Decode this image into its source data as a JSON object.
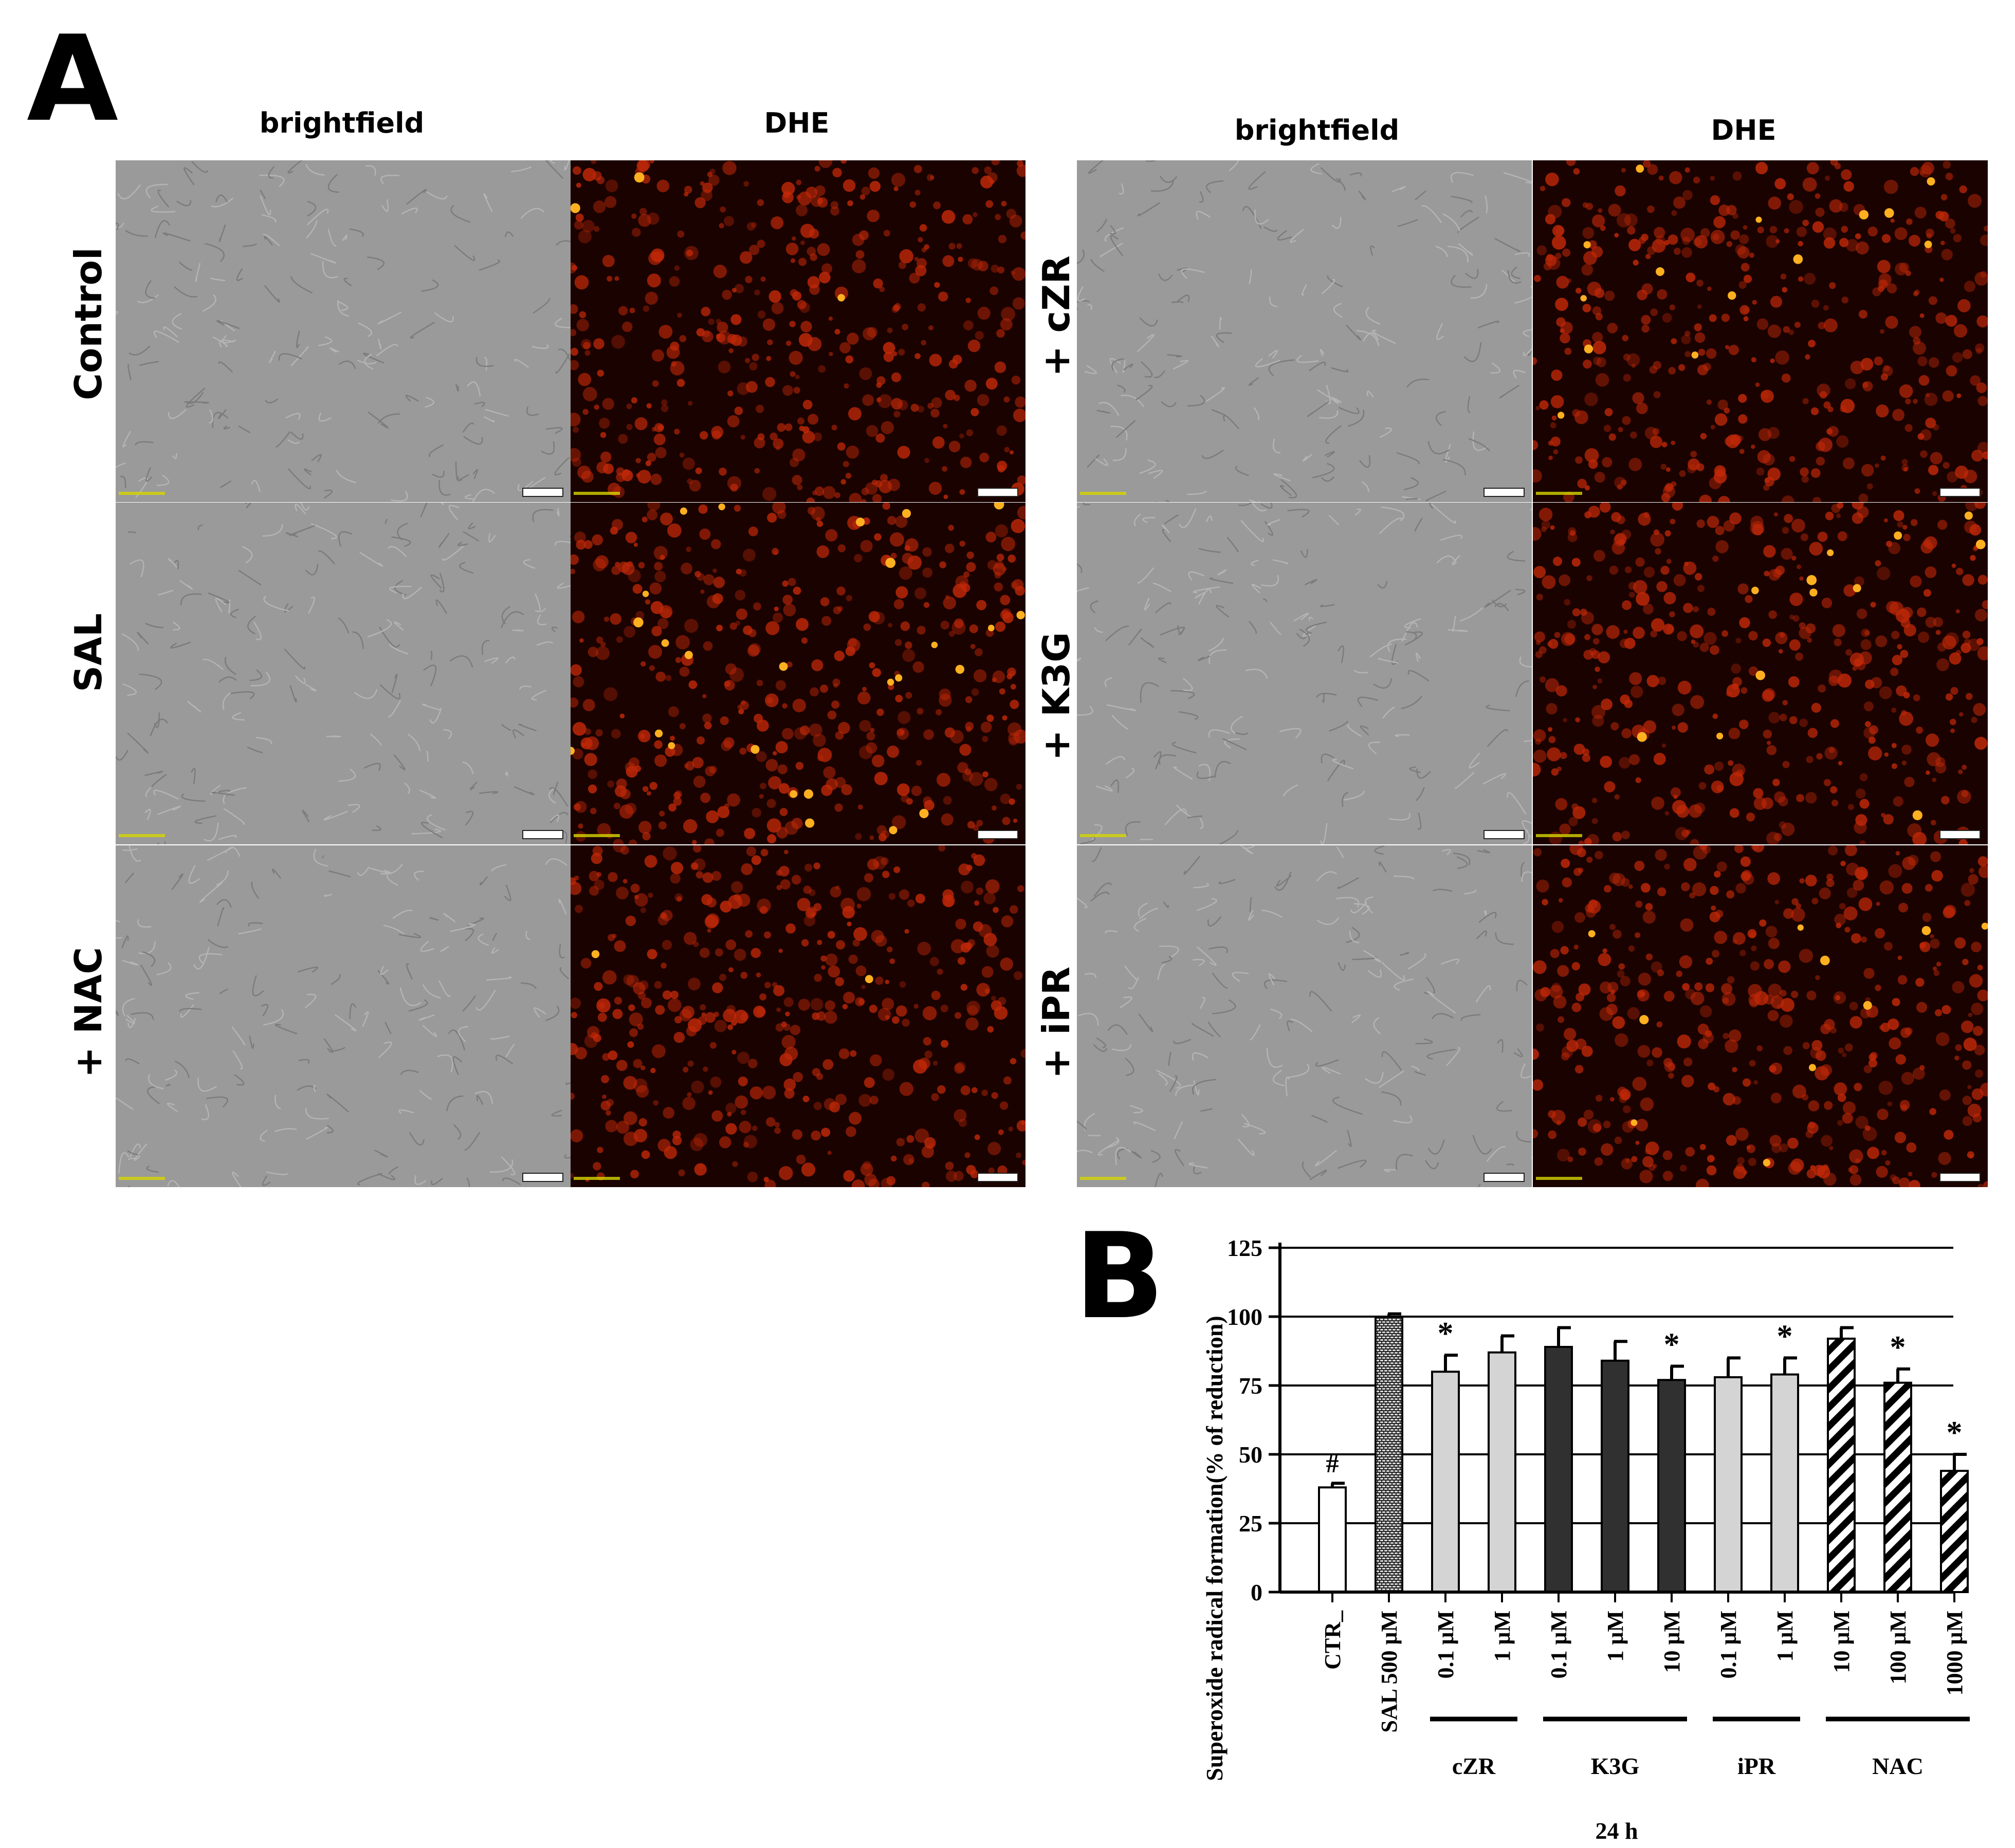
{
  "panel_a": {
    "letter": "A",
    "left_group": {
      "brightfield": "brightfield",
      "dhe": "DHE"
    },
    "right_group": {
      "brightfield": "brightfield",
      "dhe": "DHE"
    },
    "rows_left": [
      "Control",
      "SAL",
      "+ NAC"
    ],
    "rows_right": [
      "+ cZR",
      "+ K3G",
      "+ iPR"
    ],
    "colors": {
      "brightfield": "#9a9a9a",
      "dhe_bg": "#1a0200",
      "dhe_signal": "#c02808",
      "dhe_spot": "#ffb020"
    }
  },
  "panel_b": {
    "letter": "B"
  },
  "chart_data": {
    "type": "bar",
    "ylabel": "Superoxide radical formation(% of reduction)",
    "xlabel": "24 h",
    "ylim": [
      0,
      125
    ],
    "yticks": [
      0,
      25,
      50,
      75,
      100,
      125
    ],
    "grid": true,
    "categories": [
      "CTR_",
      "SAL 500 μM",
      "0.1 μM",
      "1 μM",
      "0.1 μM",
      "1 μM",
      "10 μM",
      "0.1 μM",
      "1 μM",
      "10 μM",
      "100 μM",
      "1000 μM"
    ],
    "values": [
      38,
      100,
      80,
      87,
      89,
      84,
      77,
      78,
      79,
      92,
      76,
      44
    ],
    "errors": [
      1.5,
      1,
      6,
      6,
      7,
      7,
      5,
      7,
      6,
      4,
      5,
      6
    ],
    "annotations": [
      "#",
      "",
      "*",
      "",
      "",
      "",
      "*",
      "",
      "*",
      "",
      "*",
      "*"
    ],
    "fills": [
      "white",
      "brick",
      "light",
      "light",
      "dark",
      "dark",
      "dark",
      "light",
      "light",
      "hatch",
      "hatch",
      "hatch"
    ],
    "groups": [
      {
        "label": "cZR",
        "from": 2,
        "to": 3
      },
      {
        "label": "K3G",
        "from": 4,
        "to": 6
      },
      {
        "label": "iPR",
        "from": 7,
        "to": 8
      },
      {
        "label": "NAC",
        "from": 9,
        "to": 11
      }
    ],
    "colors": {
      "light": "#d4d4d4",
      "dark": "#303030",
      "white": "#ffffff",
      "brick": "#303030"
    }
  }
}
